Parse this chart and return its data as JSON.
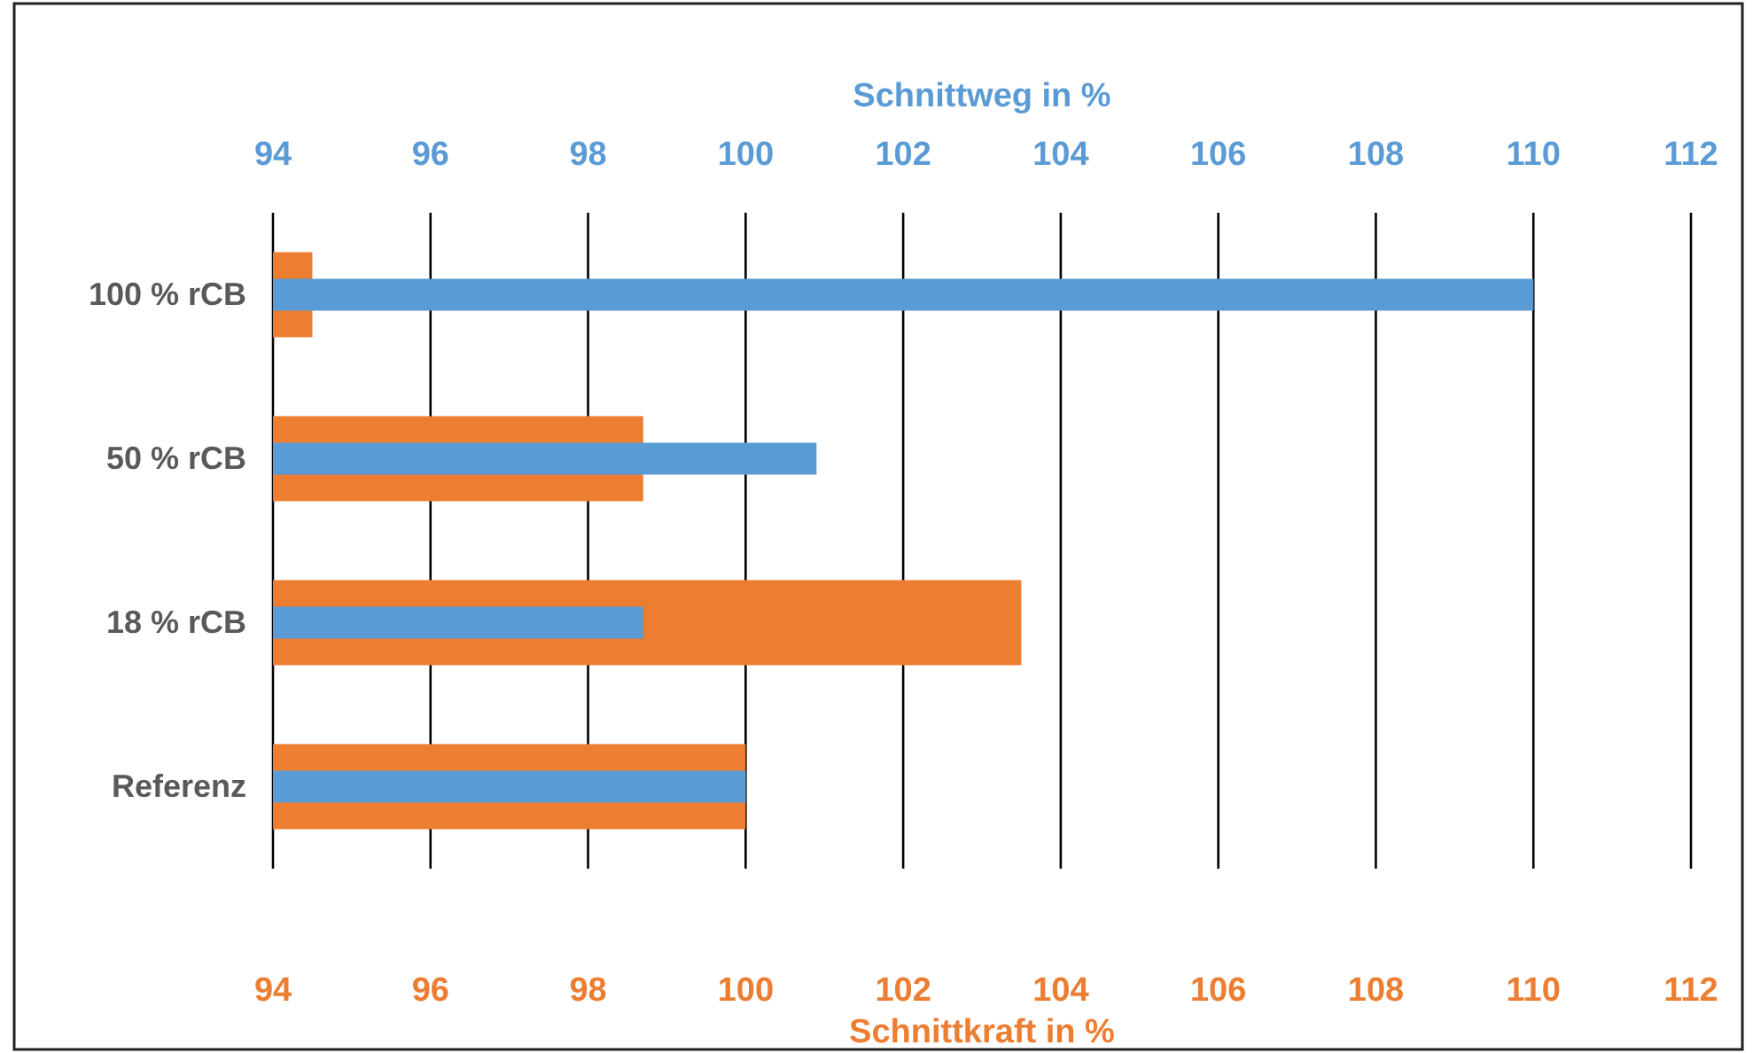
{
  "chart_data": {
    "type": "bar",
    "orientation": "horizontal",
    "categories": [
      "100 % rCB",
      "50 % rCB",
      "18 % rCB",
      "Referenz"
    ],
    "series": [
      {
        "color": "#ed7d31",
        "values": [
          94.5,
          98.7,
          103.5,
          100
        ]
      },
      {
        "color": "#5b9bd5",
        "axis": "x2",
        "values": [
          110,
          100.9,
          98.7,
          100
        ]
      }
    ],
    "xlabel": "Schnittkraft in %",
    "x2label": "Schnittweg in %",
    "xlim": [
      94,
      112
    ],
    "xticks": [
      94,
      96,
      98,
      100,
      102,
      104,
      106,
      108,
      110,
      112
    ],
    "x2lim": [
      94,
      112
    ],
    "x2ticks": [
      94,
      96,
      98,
      100,
      102,
      104,
      106,
      108,
      110,
      112
    ],
    "grid": "x"
  }
}
